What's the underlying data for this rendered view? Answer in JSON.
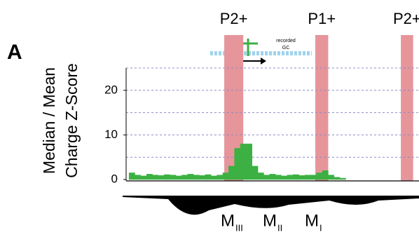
{
  "chart_data": {
    "type": "area",
    "panel_label": "A",
    "y_label": [
      "Median / Mean",
      "Charge Z-Score"
    ],
    "color": "#3cb043",
    "highlight_color": "#e6959b",
    "xlim": [
      0,
      100
    ],
    "ylim": [
      0,
      25
    ],
    "yticks": [
      0,
      10,
      20
    ],
    "grid_lines": [
      5,
      10,
      15,
      20,
      25
    ],
    "x": [
      2,
      4,
      6,
      8,
      10,
      12,
      14,
      16,
      18,
      20,
      22,
      24,
      26,
      28,
      30,
      32,
      34,
      36,
      38,
      40,
      42,
      44,
      46,
      48,
      50,
      52,
      54,
      56,
      58,
      60,
      62,
      64,
      66,
      68,
      70,
      72,
      74
    ],
    "values": [
      1.5,
      1,
      0.8,
      1.2,
      1,
      0.9,
      1.1,
      1,
      0.8,
      1,
      1.2,
      1,
      0.9,
      1.1,
      0.8,
      1,
      1.5,
      3,
      7,
      8,
      8,
      3,
      1.5,
      1,
      1.2,
      1,
      0.8,
      1,
      1.1,
      0.9,
      1,
      1,
      1.5,
      2,
      1,
      0.5,
      0.3
    ],
    "highlights": [
      {
        "label": "P2+",
        "xlim": [
          33.5,
          40
        ]
      },
      {
        "label": "P1+",
        "xlim": [
          64.6,
          69
        ]
      },
      {
        "label": "P2+",
        "xlim": [
          93.8,
          98
        ]
      }
    ],
    "inset_label": [
      "recorded",
      "GC"
    ],
    "regions": [
      {
        "label": "M",
        "sub": "III"
      },
      {
        "label": "M",
        "sub": "II"
      },
      {
        "label": "M",
        "sub": "I"
      }
    ]
  }
}
